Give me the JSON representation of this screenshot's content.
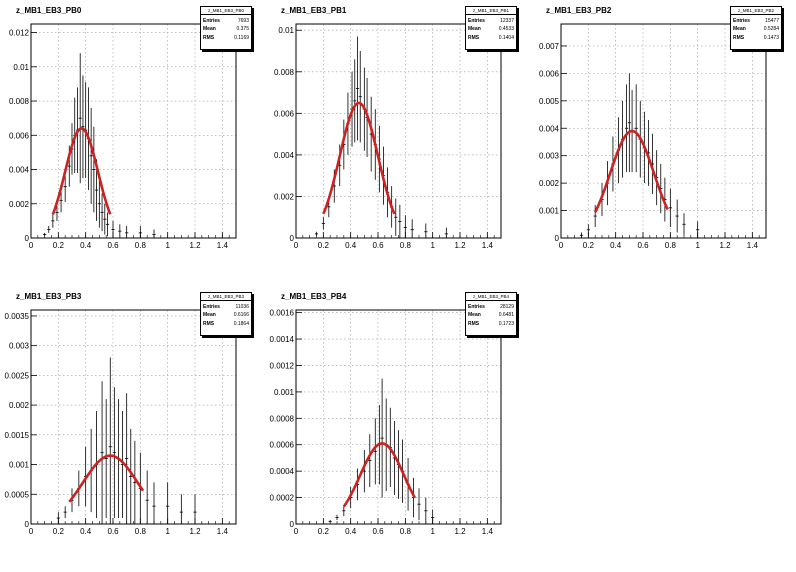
{
  "chart_data": [
    {
      "type": "scatter",
      "title": "z_MB1_EB3_PB0",
      "stats": {
        "name": "z_MB1_EB3_PB0",
        "entries": "7693",
        "mean": "0.375",
        "rms": "0.1169"
      },
      "xlim": [
        0,
        1.5
      ],
      "ylim": [
        0,
        0.0125
      ],
      "xticks": [
        0,
        0.2,
        0.4,
        0.6,
        0.8,
        1,
        1.2,
        1.4
      ],
      "xtick_labels": [
        "0",
        "0.2",
        "0.4",
        "0.6",
        "0.8",
        "1",
        "1.2",
        "1.4"
      ],
      "yticks": [
        0,
        0.002,
        0.004,
        0.006,
        0.008,
        0.01,
        0.012
      ],
      "ytick_labels": [
        "0",
        "0.002",
        "0.004",
        "0.006",
        "0.008",
        "0.01",
        "0.012"
      ],
      "fit": {
        "mu": 0.37,
        "sigma": 0.12,
        "amp": 0.0064,
        "range": [
          0.16,
          0.58
        ],
        "color": "#cc2222"
      },
      "points": [
        [
          0.1,
          0.0002
        ],
        [
          0.13,
          0.0005
        ],
        [
          0.16,
          0.001
        ],
        [
          0.19,
          0.0015
        ],
        [
          0.22,
          0.0022
        ],
        [
          0.25,
          0.003
        ],
        [
          0.28,
          0.0042
        ],
        [
          0.3,
          0.0052
        ],
        [
          0.32,
          0.006
        ],
        [
          0.34,
          0.0063
        ],
        [
          0.36,
          0.007
        ],
        [
          0.38,
          0.0065
        ],
        [
          0.4,
          0.0063
        ],
        [
          0.42,
          0.0058
        ],
        [
          0.44,
          0.0048
        ],
        [
          0.46,
          0.004
        ],
        [
          0.48,
          0.0028
        ],
        [
          0.5,
          0.002
        ],
        [
          0.52,
          0.0015
        ],
        [
          0.54,
          0.0011
        ],
        [
          0.56,
          0.0008
        ],
        [
          0.6,
          0.0005
        ],
        [
          0.65,
          0.0004
        ],
        [
          0.7,
          0.0003
        ],
        [
          0.8,
          0.0003
        ],
        [
          0.9,
          0.0002
        ]
      ],
      "errors": [
        0.0001,
        0.0002,
        0.0004,
        0.0005,
        0.0007,
        0.0009,
        0.0012,
        0.0015,
        0.0022,
        0.0025,
        0.0038,
        0.003,
        0.0028,
        0.003,
        0.0028,
        0.0025,
        0.0018,
        0.0014,
        0.0011,
        0.0009,
        0.0007,
        0.0005,
        0.0004,
        0.0004,
        0.0004,
        0.0003
      ]
    },
    {
      "type": "scatter",
      "title": "z_MB1_EB3_PB1",
      "stats": {
        "name": "z_MB1_EB3_PB1",
        "entries": "12337",
        "mean": "0.4533",
        "rms": "0.1404"
      },
      "xlim": [
        0,
        1.5
      ],
      "ylim": [
        0,
        0.0103
      ],
      "xticks": [
        0,
        0.2,
        0.4,
        0.6,
        0.8,
        1,
        1.2,
        1.4
      ],
      "xtick_labels": [
        "0",
        "0.2",
        "0.4",
        "0.6",
        "0.8",
        "1",
        "1.2",
        "1.4"
      ],
      "yticks": [
        0,
        0.002,
        0.004,
        0.006,
        0.008,
        0.01
      ],
      "ytick_labels": [
        "0",
        "0.002",
        "0.004",
        "0.006",
        "0.008",
        "0.01"
      ],
      "fit": {
        "mu": 0.46,
        "sigma": 0.14,
        "amp": 0.0065,
        "range": [
          0.2,
          0.72
        ],
        "color": "#cc2222"
      },
      "points": [
        [
          0.15,
          0.0002
        ],
        [
          0.2,
          0.0007
        ],
        [
          0.24,
          0.0015
        ],
        [
          0.28,
          0.0025
        ],
        [
          0.32,
          0.0035
        ],
        [
          0.35,
          0.0045
        ],
        [
          0.38,
          0.0055
        ],
        [
          0.41,
          0.0062
        ],
        [
          0.43,
          0.0066
        ],
        [
          0.45,
          0.0072
        ],
        [
          0.47,
          0.0068
        ],
        [
          0.5,
          0.0062
        ],
        [
          0.52,
          0.0058
        ],
        [
          0.55,
          0.005
        ],
        [
          0.58,
          0.0045
        ],
        [
          0.61,
          0.0038
        ],
        [
          0.64,
          0.003
        ],
        [
          0.67,
          0.0022
        ],
        [
          0.7,
          0.0015
        ],
        [
          0.73,
          0.001
        ],
        [
          0.76,
          0.0008
        ],
        [
          0.8,
          0.0005
        ],
        [
          0.85,
          0.0004
        ],
        [
          0.95,
          0.0003
        ],
        [
          1.1,
          0.0002
        ]
      ],
      "errors": [
        0.0001,
        0.0003,
        0.0005,
        0.0008,
        0.001,
        0.0012,
        0.0015,
        0.0018,
        0.002,
        0.0025,
        0.0022,
        0.002,
        0.0019,
        0.0018,
        0.0017,
        0.0016,
        0.0014,
        0.0012,
        0.001,
        0.0009,
        0.0008,
        0.0006,
        0.0005,
        0.0004,
        0.0003
      ]
    },
    {
      "type": "scatter",
      "title": "z_MB1_EB3_PB2",
      "stats": {
        "name": "z_MB1_EB3_PB2",
        "entries": "15477",
        "mean": "0.5284",
        "rms": "0.1473"
      },
      "xlim": [
        0,
        1.5
      ],
      "ylim": [
        0,
        0.0078
      ],
      "xticks": [
        0,
        0.2,
        0.4,
        0.6,
        0.8,
        1,
        1.2,
        1.4
      ],
      "xtick_labels": [
        "0",
        "0.2",
        "0.4",
        "0.6",
        "0.8",
        "1",
        "1.2",
        "1.4"
      ],
      "yticks": [
        0,
        0.001,
        0.002,
        0.003,
        0.004,
        0.005,
        0.006,
        0.007
      ],
      "ytick_labels": [
        "0",
        "0.001",
        "0.002",
        "0.003",
        "0.004",
        "0.005",
        "0.006",
        "0.007"
      ],
      "fit": {
        "mu": 0.52,
        "sigma": 0.16,
        "amp": 0.0039,
        "range": [
          0.25,
          0.78
        ],
        "color": "#cc2222"
      },
      "points": [
        [
          0.15,
          0.0001
        ],
        [
          0.2,
          0.0003
        ],
        [
          0.25,
          0.0008
        ],
        [
          0.3,
          0.0014
        ],
        [
          0.34,
          0.002
        ],
        [
          0.38,
          0.0027
        ],
        [
          0.42,
          0.0032
        ],
        [
          0.45,
          0.0036
        ],
        [
          0.48,
          0.004
        ],
        [
          0.5,
          0.0042
        ],
        [
          0.52,
          0.0039
        ],
        [
          0.55,
          0.004
        ],
        [
          0.58,
          0.0036
        ],
        [
          0.61,
          0.0033
        ],
        [
          0.64,
          0.0031
        ],
        [
          0.67,
          0.0027
        ],
        [
          0.7,
          0.0022
        ],
        [
          0.73,
          0.0018
        ],
        [
          0.76,
          0.0014
        ],
        [
          0.8,
          0.0011
        ],
        [
          0.85,
          0.0008
        ],
        [
          0.9,
          0.0005
        ],
        [
          1.0,
          0.0003
        ]
      ],
      "errors": [
        0.0001,
        0.0002,
        0.0004,
        0.0006,
        0.0008,
        0.001,
        0.0012,
        0.0014,
        0.0016,
        0.0018,
        0.0015,
        0.0016,
        0.0014,
        0.0013,
        0.0012,
        0.0011,
        0.001,
        0.0009,
        0.0008,
        0.0007,
        0.0006,
        0.0004,
        0.0003
      ]
    },
    {
      "type": "scatter",
      "title": "z_MB1_EB3_PB3",
      "stats": {
        "name": "z_MB1_EB3_PB3",
        "entries": "11036",
        "mean": "0.6166",
        "rms": "0.1864"
      },
      "xlim": [
        0,
        1.5
      ],
      "ylim": [
        0,
        0.0036
      ],
      "xticks": [
        0,
        0.2,
        0.4,
        0.6,
        0.8,
        1,
        1.2,
        1.4
      ],
      "xtick_labels": [
        "0",
        "0.2",
        "0.4",
        "0.6",
        "0.8",
        "1",
        "1.2",
        "1.4"
      ],
      "yticks": [
        0,
        0.0005,
        0.001,
        0.0015,
        0.002,
        0.0025,
        0.003,
        0.0035
      ],
      "ytick_labels": [
        "0",
        "0.0005",
        "0.001",
        "0.0015",
        "0.002",
        "0.0025",
        "0.003",
        "0.0035"
      ],
      "fit": {
        "mu": 0.58,
        "sigma": 0.2,
        "amp": 0.00115,
        "range": [
          0.28,
          0.82
        ],
        "color": "#cc2222"
      },
      "points": [
        [
          0.2,
          0.0001
        ],
        [
          0.25,
          0.0002
        ],
        [
          0.3,
          0.0004
        ],
        [
          0.35,
          0.0006
        ],
        [
          0.4,
          0.0008
        ],
        [
          0.44,
          0.0009
        ],
        [
          0.48,
          0.001
        ],
        [
          0.52,
          0.0012
        ],
        [
          0.55,
          0.0011
        ],
        [
          0.58,
          0.0013
        ],
        [
          0.61,
          0.0012
        ],
        [
          0.64,
          0.0011
        ],
        [
          0.67,
          0.001
        ],
        [
          0.7,
          0.0011
        ],
        [
          0.73,
          0.0008
        ],
        [
          0.76,
          0.0007
        ],
        [
          0.8,
          0.0006
        ],
        [
          0.85,
          0.0004
        ],
        [
          0.9,
          0.0003
        ],
        [
          1.0,
          0.0003
        ],
        [
          1.1,
          0.0002
        ],
        [
          1.2,
          0.0002
        ]
      ],
      "errors": [
        0.0001,
        0.0001,
        0.0002,
        0.0003,
        0.0005,
        0.0007,
        0.0009,
        0.0012,
        0.001,
        0.0015,
        0.0011,
        0.001,
        0.0009,
        0.0011,
        0.0008,
        0.0007,
        0.0006,
        0.0005,
        0.0004,
        0.0004,
        0.0003,
        0.0003
      ]
    },
    {
      "type": "scatter",
      "title": "z_MB1_EB3_PB4",
      "stats": {
        "name": "z_MB1_EB3_PB4",
        "entries": "28129",
        "mean": "0.6481",
        "rms": "0.1723"
      },
      "xlim": [
        0,
        1.5
      ],
      "ylim": [
        0,
        0.00162
      ],
      "xticks": [
        0,
        0.2,
        0.4,
        0.6,
        0.8,
        1,
        1.2,
        1.4
      ],
      "xtick_labels": [
        "0",
        "0.2",
        "0.4",
        "0.6",
        "0.8",
        "1",
        "1.2",
        "1.4"
      ],
      "yticks": [
        0,
        0.0002,
        0.0004,
        0.0006,
        0.0008,
        0.001,
        0.0012,
        0.0014,
        0.0016
      ],
      "ytick_labels": [
        "0",
        "0.0002",
        "0.0004",
        "0.0006",
        "0.0008",
        "0.001",
        "0.0012",
        "0.0014",
        "0.0016"
      ],
      "fit": {
        "mu": 0.63,
        "sigma": 0.16,
        "amp": 0.00061,
        "range": [
          0.35,
          0.87
        ],
        "color": "#cc2222"
      },
      "points": [
        [
          0.25,
          2e-05
        ],
        [
          0.3,
          5e-05
        ],
        [
          0.35,
          0.0001
        ],
        [
          0.4,
          0.0002
        ],
        [
          0.45,
          0.0003
        ],
        [
          0.5,
          0.0004
        ],
        [
          0.54,
          0.00048
        ],
        [
          0.58,
          0.00055
        ],
        [
          0.61,
          0.0006
        ],
        [
          0.63,
          0.00065
        ],
        [
          0.66,
          0.0006
        ],
        [
          0.69,
          0.00058
        ],
        [
          0.72,
          0.0005
        ],
        [
          0.75,
          0.00045
        ],
        [
          0.78,
          0.0004
        ],
        [
          0.82,
          0.0003
        ],
        [
          0.86,
          0.0002
        ],
        [
          0.9,
          0.00015
        ],
        [
          0.95,
          0.0001
        ],
        [
          1.0,
          5e-05
        ]
      ],
      "errors": [
        1e-05,
        2e-05,
        4e-05,
        8e-05,
        0.00012,
        0.00016,
        0.0002,
        0.00025,
        0.0003,
        0.00045,
        0.00035,
        0.0003,
        0.00028,
        0.00026,
        0.00024,
        0.0002,
        0.00015,
        0.00012,
        0.0001,
        6e-05
      ]
    }
  ]
}
